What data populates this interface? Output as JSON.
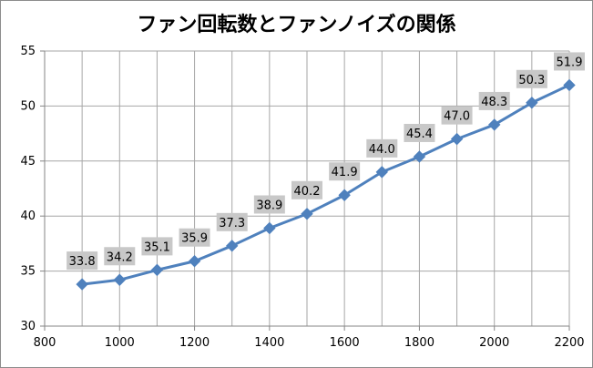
{
  "chart_data": {
    "type": "line",
    "title": "ファン回転数とファンノイズの関係",
    "xlabel": "",
    "ylabel": "",
    "xlim": [
      800,
      2200
    ],
    "ylim": [
      30,
      55
    ],
    "x_ticks": [
      800,
      1000,
      1200,
      1400,
      1600,
      1800,
      2000,
      2200
    ],
    "y_ticks": [
      30,
      35,
      40,
      45,
      50,
      55
    ],
    "x_grid_step": 100,
    "grid": true,
    "legend": "none",
    "series": [
      {
        "x": [
          900,
          1000,
          1100,
          1200,
          1300,
          1400,
          1500,
          1600,
          1700,
          1800,
          1900,
          2000,
          2100,
          2200
        ],
        "values": [
          33.8,
          34.2,
          35.1,
          35.9,
          37.3,
          38.9,
          40.2,
          41.9,
          44.0,
          45.4,
          47.0,
          48.3,
          50.3,
          51.9
        ],
        "labels": [
          "33.8",
          "34.2",
          "35.1",
          "35.9",
          "37.3",
          "38.9",
          "40.2",
          "41.9",
          "44.0",
          "45.4",
          "47.0",
          "48.3",
          "50.3",
          "51.9"
        ],
        "color": "#4f81bd",
        "marker": "diamond"
      }
    ],
    "colors": {
      "gridline": "#a6a6a6",
      "data_label_background": "#c8c8c8"
    }
  }
}
